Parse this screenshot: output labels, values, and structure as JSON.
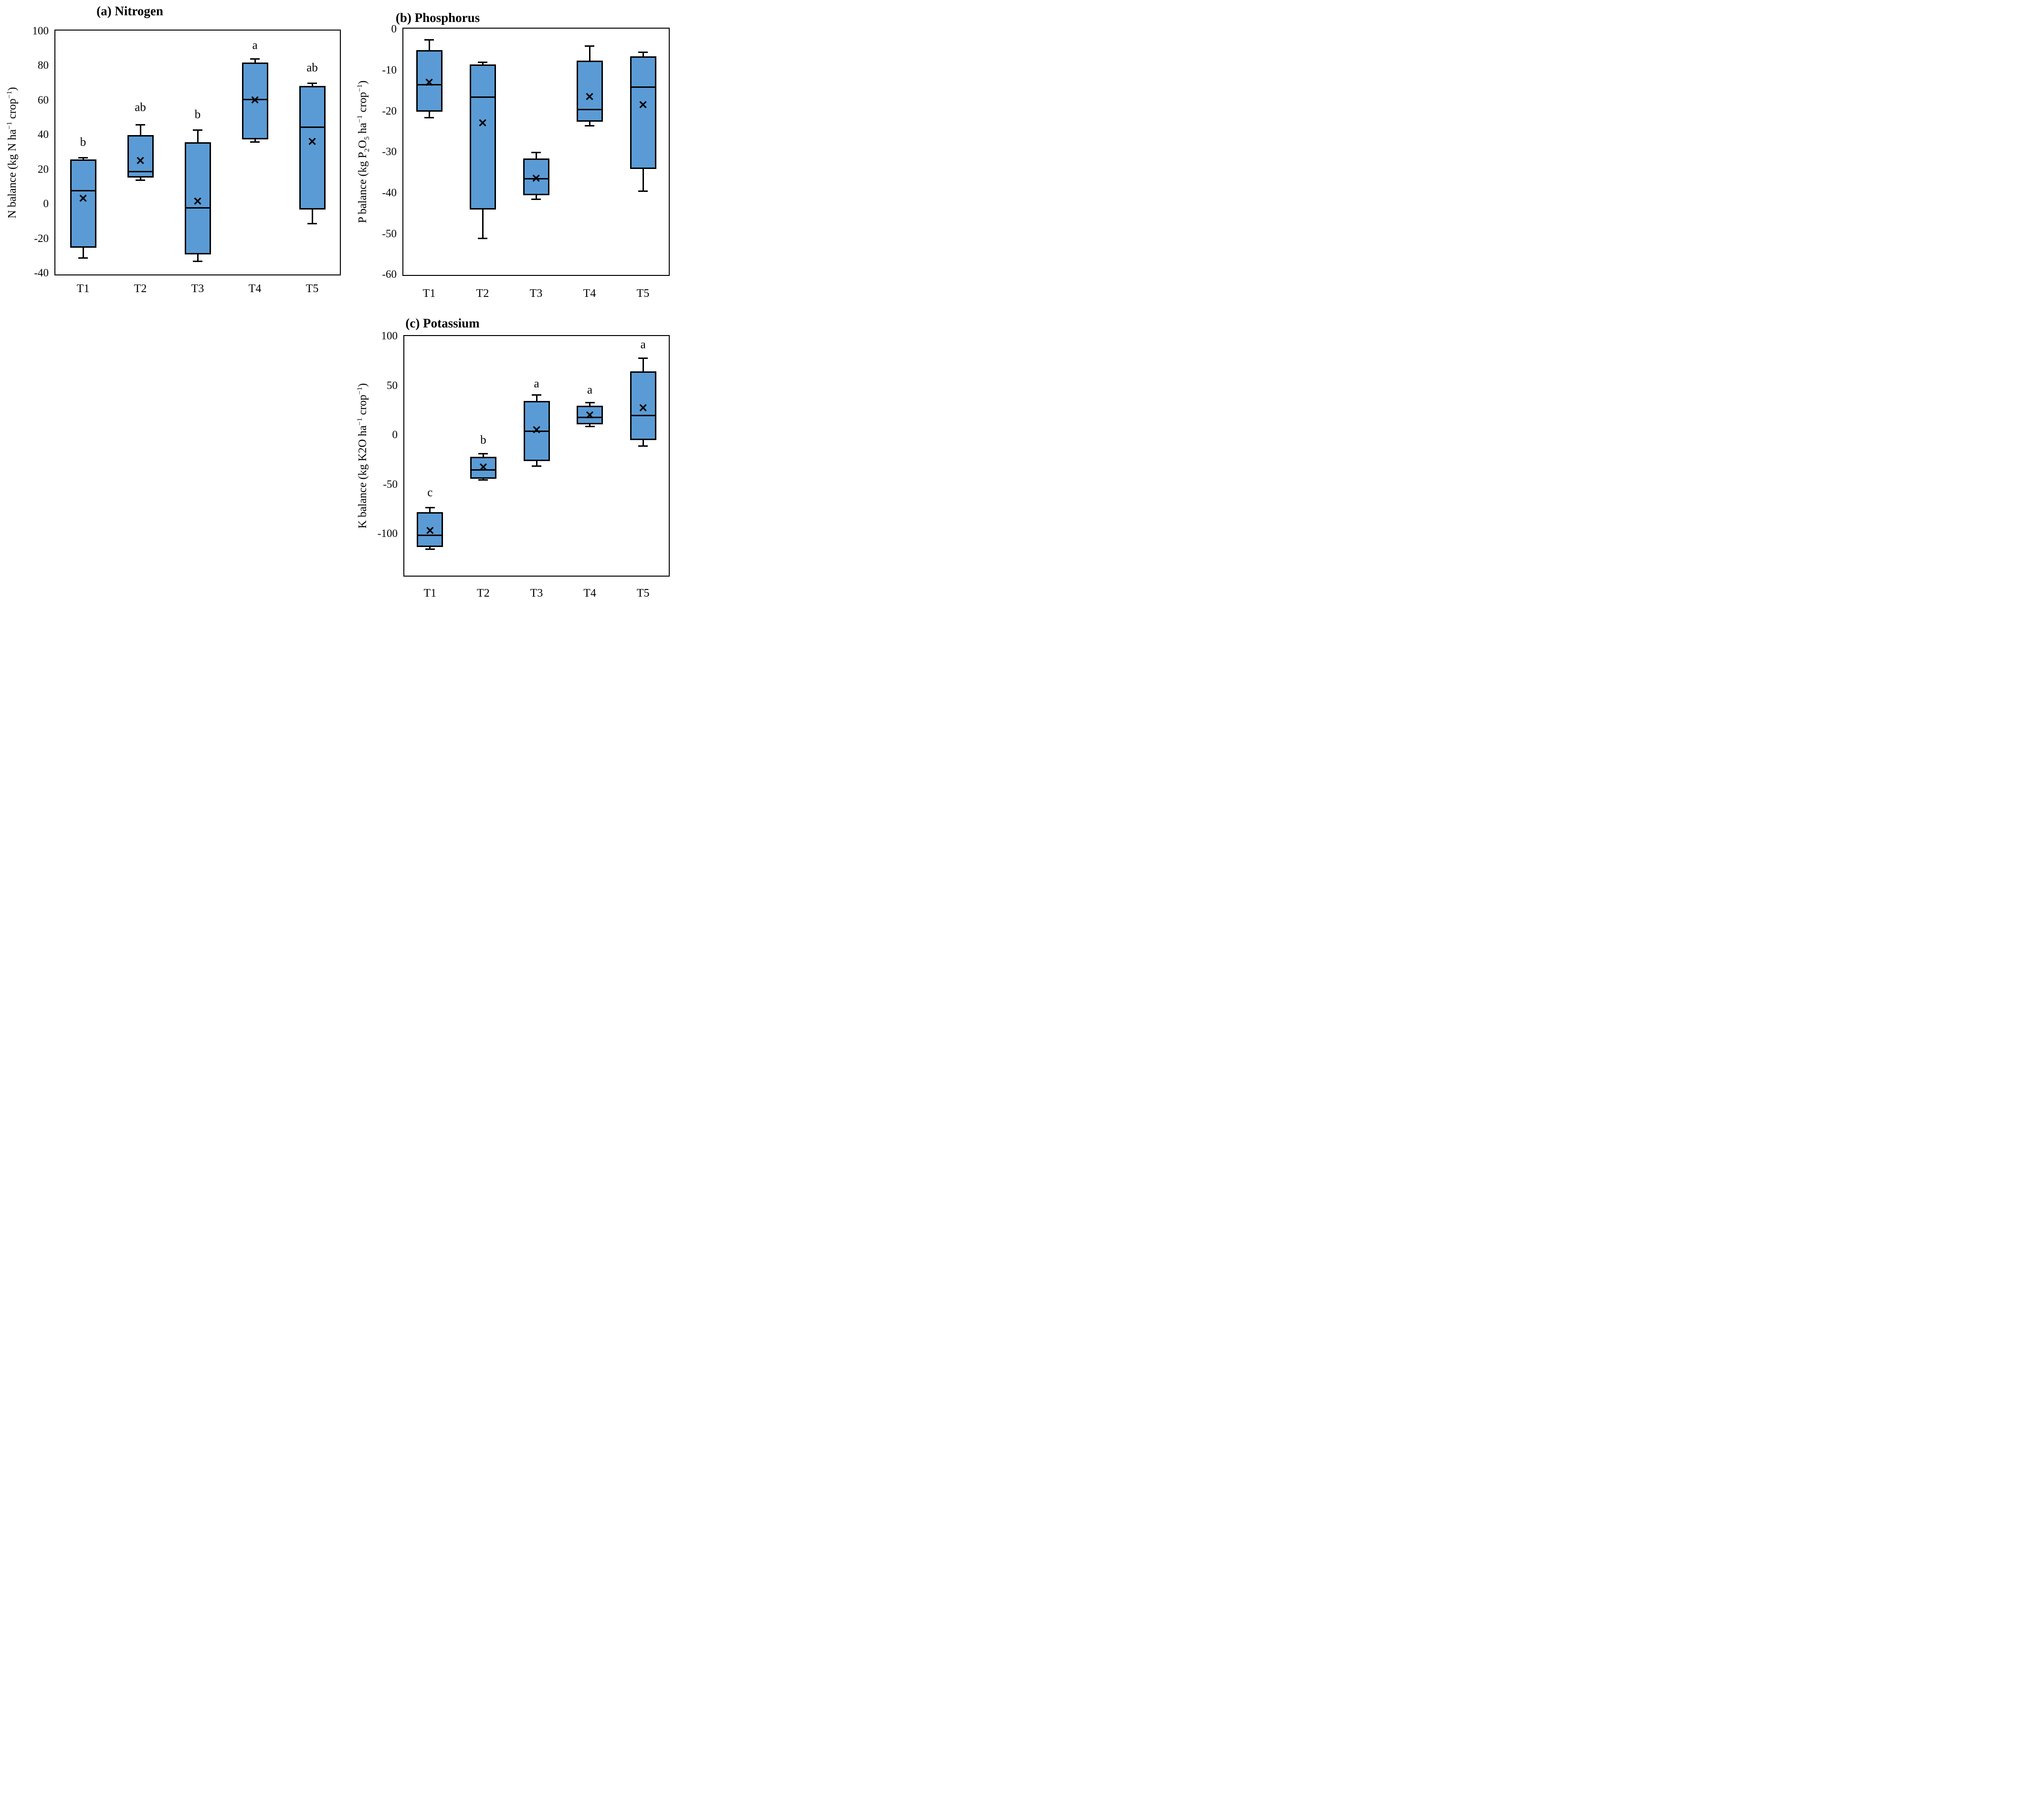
{
  "figure": {
    "kind": "boxplot-figure",
    "panel_count": 3,
    "marker_glyph": "✕"
  },
  "colors": {
    "box_fill": "#5B9BD5",
    "box_border": "#000000",
    "text": "#000000",
    "background": "#FFFFFF"
  },
  "chart_data": [
    {
      "type": "box",
      "panel": "(a)",
      "title": "(a)  Nitrogen",
      "ylabel": "N balance (kg N ha-1 crop-1)",
      "ylabel_segments": [
        {
          "t": "N balance (kg N ha"
        },
        {
          "t": "−1",
          "sup": true
        },
        {
          "t": " crop"
        },
        {
          "t": "−1",
          "sup": true
        },
        {
          "t": ")"
        }
      ],
      "xlabel": "",
      "ylim": [
        -40,
        100
      ],
      "yticks": [
        100,
        80,
        60,
        40,
        20,
        0,
        -20,
        -40
      ],
      "grid": false,
      "legend": null,
      "categories": [
        "T1",
        "T2",
        "T3",
        "T4",
        "T5"
      ],
      "boxes": [
        {
          "category": "T1",
          "whisker_low": -31,
          "q1": -25,
          "median": 8,
          "q3": 26,
          "whisker_high": 27,
          "mean": 3,
          "letter": "b",
          "letter_y": 36
        },
        {
          "category": "T2",
          "whisker_low": 14,
          "q1": 15.5,
          "median": 19,
          "q3": 40,
          "whisker_high": 46,
          "mean": 25,
          "letter": "ab",
          "letter_y": 56
        },
        {
          "category": "T3",
          "whisker_low": -33,
          "q1": -29,
          "median": -2,
          "q3": 36,
          "whisker_high": 43,
          "mean": 1.5,
          "letter": "b",
          "letter_y": 52
        },
        {
          "category": "T4",
          "whisker_low": 36,
          "q1": 37.5,
          "median": 60.5,
          "q3": 82,
          "whisker_high": 84,
          "mean": 60,
          "letter": "a",
          "letter_y": 92
        },
        {
          "category": "T5",
          "whisker_low": -11,
          "q1": -3,
          "median": 44.5,
          "q3": 68.5,
          "whisker_high": 70,
          "mean": 36,
          "letter": "ab",
          "letter_y": 79
        }
      ]
    },
    {
      "type": "box",
      "panel": "(b)",
      "title": "(b) Phosphorus",
      "ylabel": "P balance (kg P2O5 ha-1 crop-1)",
      "ylabel_segments": [
        {
          "t": "P balance (kg P"
        },
        {
          "t": "2",
          "sub": true
        },
        {
          "t": "O"
        },
        {
          "t": "5",
          "sub": true
        },
        {
          "t": " ha"
        },
        {
          "t": "−1",
          "sup": true
        },
        {
          "t": " crop"
        },
        {
          "t": "−1",
          "sup": true
        },
        {
          "t": ")"
        }
      ],
      "xlabel": "",
      "ylim": [
        -60,
        0
      ],
      "yticks": [
        0,
        -10,
        -20,
        -30,
        -40,
        -50,
        -60
      ],
      "grid": false,
      "legend": null,
      "categories": [
        "T1",
        "T2",
        "T3",
        "T4",
        "T5"
      ],
      "boxes": [
        {
          "category": "T1",
          "whisker_low": -21.5,
          "q1": -20,
          "median": -13.5,
          "q3": -5,
          "whisker_high": -2.5,
          "mean": -13,
          "letter": null,
          "letter_y": null
        },
        {
          "category": "T2",
          "whisker_low": -51,
          "q1": -44,
          "median": -16.5,
          "q3": -8.5,
          "whisker_high": -8,
          "mean": -23,
          "letter": null,
          "letter_y": null
        },
        {
          "category": "T3",
          "whisker_low": -41.5,
          "q1": -40.5,
          "median": -36.5,
          "q3": -31.5,
          "whisker_high": -30,
          "mean": -36.5,
          "letter": null,
          "letter_y": null
        },
        {
          "category": "T4",
          "whisker_low": -23.5,
          "q1": -22.5,
          "median": -19.5,
          "q3": -7.5,
          "whisker_high": -4,
          "mean": -16.5,
          "letter": null,
          "letter_y": null
        },
        {
          "category": "T5",
          "whisker_low": -39.5,
          "q1": -34,
          "median": -14,
          "q3": -6.5,
          "whisker_high": -5.5,
          "mean": -18.5,
          "letter": null,
          "letter_y": null
        }
      ]
    },
    {
      "type": "box",
      "panel": "(c)",
      "title": "(c) Potassium",
      "ylabel": "K balance (kg K2O  ha-1 crop-1)",
      "ylabel_segments": [
        {
          "t": "K balance (kg K2O  ha"
        },
        {
          "t": "−1",
          "sup": true
        },
        {
          "t": " crop"
        },
        {
          "t": "−1",
          "sup": true
        },
        {
          "t": ")"
        }
      ],
      "xlabel": "",
      "ylim": [
        -140,
        100
      ],
      "yticks": [
        100,
        50,
        0,
        -50,
        -100
      ],
      "grid": false,
      "legend": null,
      "categories": [
        "T1",
        "T2",
        "T3",
        "T4",
        "T5"
      ],
      "boxes": [
        {
          "category": "T1",
          "whisker_low": -115,
          "q1": -113,
          "median": -101,
          "q3": -78,
          "whisker_high": -73,
          "mean": -97,
          "letter": "c",
          "letter_y": -58
        },
        {
          "category": "T2",
          "whisker_low": -45,
          "q1": -44,
          "median": -35,
          "q3": -21.5,
          "whisker_high": -18.5,
          "mean": -33,
          "letter": "b",
          "letter_y": -5
        },
        {
          "category": "T3",
          "whisker_low": -31,
          "q1": -26,
          "median": 4,
          "q3": 35,
          "whisker_high": 41,
          "mean": 5,
          "letter": "a",
          "letter_y": 52
        },
        {
          "category": "T4",
          "whisker_low": 9,
          "q1": 11,
          "median": 18,
          "q3": 30,
          "whisker_high": 33,
          "mean": 20,
          "letter": "a",
          "letter_y": 46
        },
        {
          "category": "T5",
          "whisker_low": -11,
          "q1": -5,
          "median": 20,
          "q3": 65,
          "whisker_high": 78,
          "mean": 27,
          "letter": "a",
          "letter_y": 92
        }
      ]
    }
  ]
}
